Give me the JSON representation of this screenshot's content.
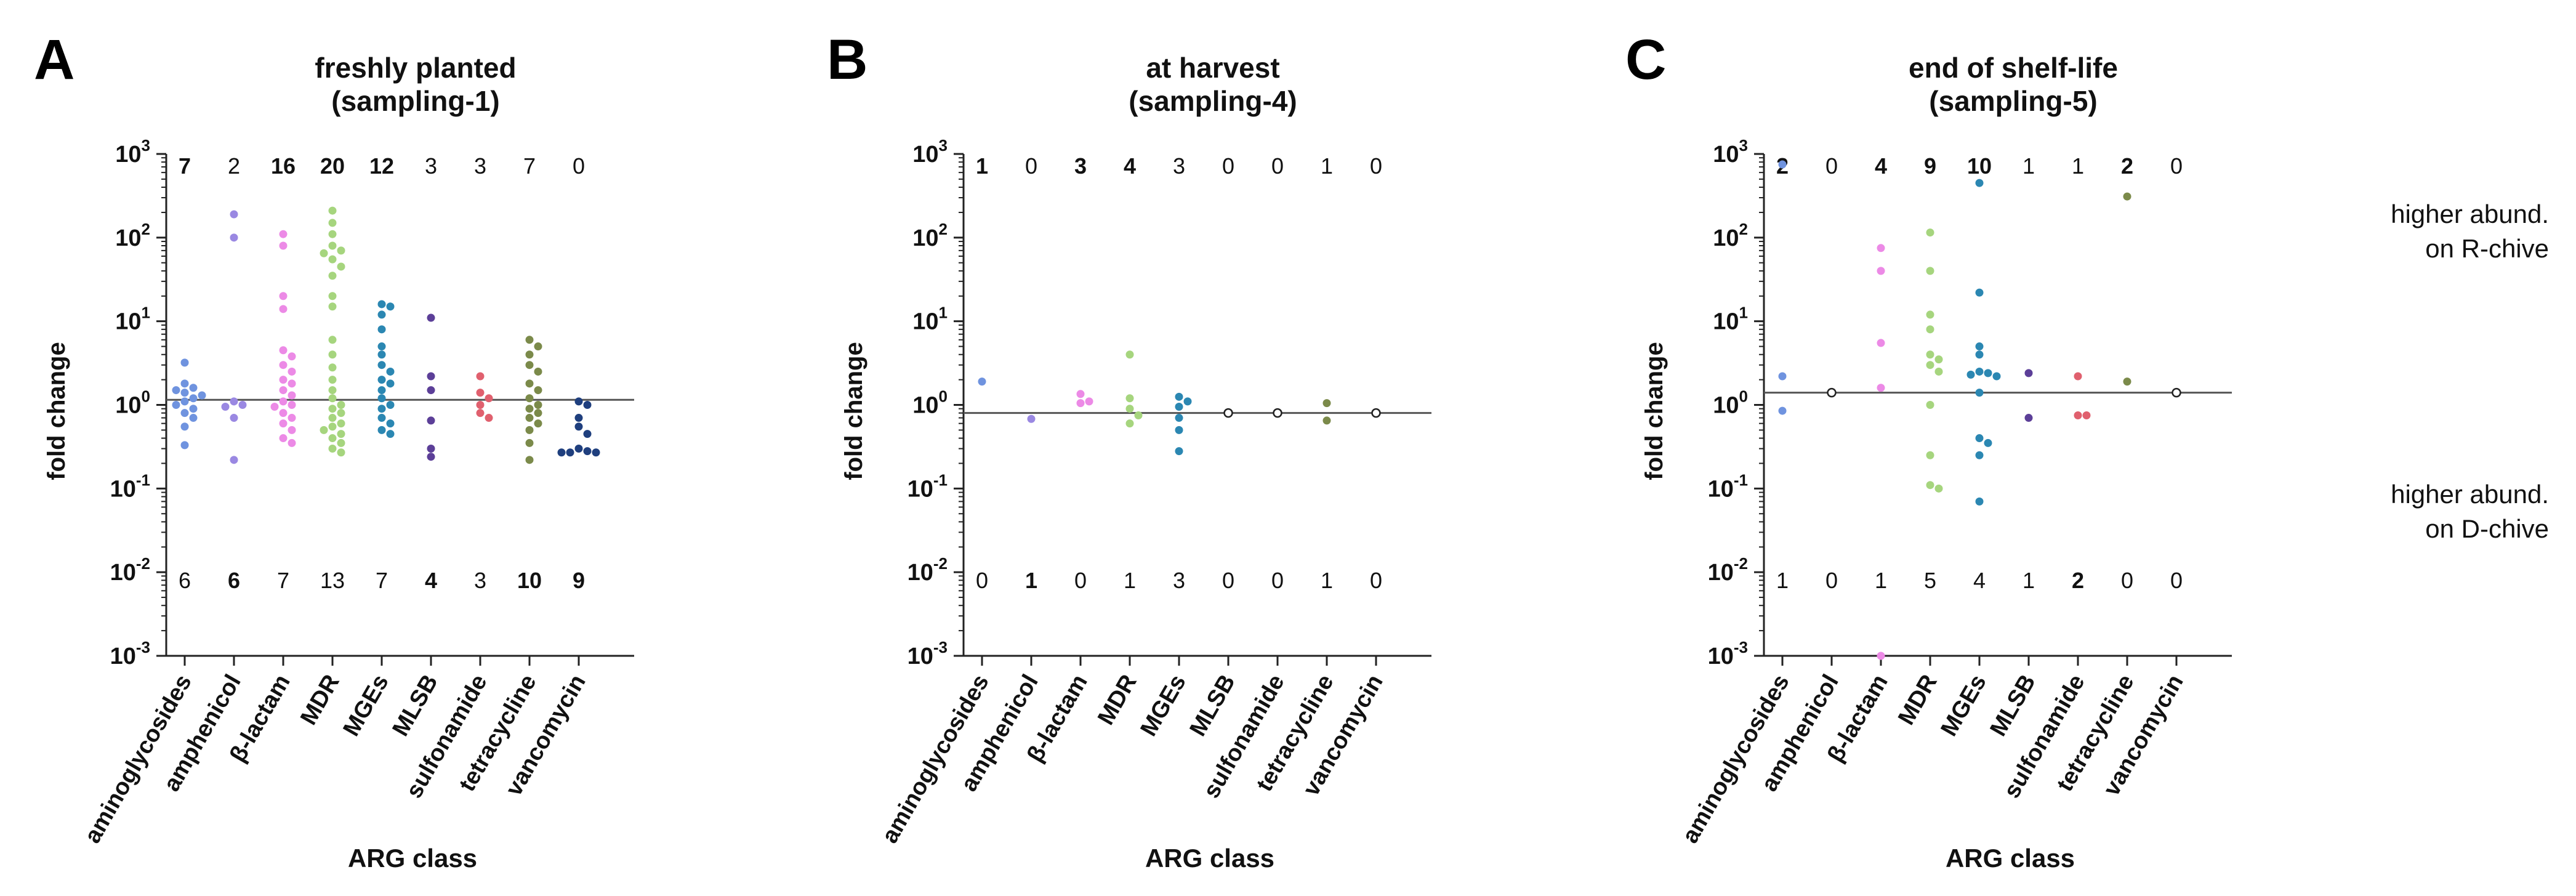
{
  "figure": {
    "categories": [
      "aminoglycosides",
      "amphenicol",
      "β-lactam",
      "MDR",
      "MGEs",
      "MLSB",
      "sulfonamide",
      "tetracycline",
      "vancomycin"
    ],
    "category_colors": [
      "#6f93df",
      "#9a88e2",
      "#ec8ae6",
      "#a6d57e",
      "#2b87b2",
      "#5c3f98",
      "#e0606e",
      "#7b8a4a",
      "#1f3f7e"
    ],
    "ylabel": "fold change",
    "xlabel": "ARG class",
    "y_ticks": [
      "10^3",
      "10^2",
      "10^1",
      "10^0",
      "10^-1",
      "10^-2",
      "10^-3"
    ],
    "notes": [
      {
        "line1": "higher abund.",
        "line2": "on R-chive"
      },
      {
        "line1": "higher abund.",
        "line2": "on D-chive"
      }
    ]
  },
  "chart_data": [
    {
      "type": "scatter",
      "panel": "A",
      "title_line1": "freshly planted",
      "title_line2": "(sampling-1)",
      "yscale": "log",
      "ylim": [
        0.001,
        1000
      ],
      "reference_line": 1.15,
      "counts_up": [
        "7",
        "2",
        "16",
        "20",
        "12",
        "3",
        "3",
        "7",
        "0"
      ],
      "counts_up_bold": [
        true,
        false,
        true,
        true,
        true,
        false,
        false,
        false,
        false
      ],
      "counts_down": [
        "6",
        "6",
        "7",
        "13",
        "7",
        "4",
        "3",
        "10",
        "9"
      ],
      "counts_down_bold": [
        false,
        true,
        false,
        false,
        false,
        true,
        false,
        true,
        true
      ],
      "series": [
        [
          3.2,
          1.8,
          1.6,
          1.5,
          1.4,
          1.3,
          1.2,
          1.1,
          1.0,
          0.9,
          0.8,
          0.7,
          0.55,
          0.33
        ],
        [
          190,
          100,
          1.1,
          1.0,
          0.95,
          0.7,
          0.22
        ],
        [
          110,
          80,
          20,
          14,
          4.5,
          3.8,
          3.0,
          2.5,
          2.0,
          1.8,
          1.5,
          1.3,
          1.1,
          1.0,
          0.95,
          0.8,
          0.7,
          0.6,
          0.5,
          0.4,
          0.35
        ],
        [
          210,
          150,
          110,
          80,
          70,
          65,
          55,
          45,
          35,
          20,
          15,
          6,
          4,
          2.8,
          2.0,
          1.5,
          1.2,
          1.0,
          0.9,
          0.8,
          0.7,
          0.6,
          0.55,
          0.5,
          0.45,
          0.4,
          0.35,
          0.3,
          0.27
        ],
        [
          16,
          15,
          12,
          8,
          5,
          4,
          3,
          2.5,
          2,
          1.8,
          1.5,
          1.2,
          1.0,
          0.9,
          0.7,
          0.6,
          0.5,
          0.45
        ],
        [
          11,
          2.2,
          1.5,
          0.65,
          0.3,
          0.24
        ],
        [
          2.2,
          1.4,
          1.2,
          1.0,
          0.8,
          0.7
        ],
        [
          6,
          5,
          4,
          3,
          2.5,
          1.8,
          1.5,
          1.2,
          1.0,
          0.9,
          0.8,
          0.7,
          0.6,
          0.5,
          0.35,
          0.22
        ],
        [
          1.1,
          1.0,
          0.7,
          0.55,
          0.45,
          0.3,
          0.28,
          0.27,
          0.27,
          0.27
        ]
      ]
    },
    {
      "type": "scatter",
      "panel": "B",
      "title_line1": "at harvest",
      "title_line2": "(sampling-4)",
      "yscale": "log",
      "ylim": [
        0.001,
        1000
      ],
      "reference_line": 0.8,
      "counts_up": [
        "1",
        "0",
        "3",
        "4",
        "3",
        "0",
        "0",
        "1",
        "0"
      ],
      "counts_up_bold": [
        true,
        false,
        true,
        true,
        false,
        false,
        false,
        false,
        false
      ],
      "counts_down": [
        "0",
        "1",
        "0",
        "1",
        "3",
        "0",
        "0",
        "1",
        "0"
      ],
      "counts_down_bold": [
        false,
        true,
        false,
        false,
        false,
        false,
        false,
        false,
        false
      ],
      "series": [
        [
          1.9
        ],
        [
          0.68
        ],
        [
          1.35,
          1.1,
          1.05
        ],
        [
          4.0,
          1.2,
          0.9,
          0.75,
          0.6
        ],
        [
          1.25,
          1.1,
          0.95,
          0.7,
          0.5,
          0.28
        ],
        [
          0.8
        ],
        [
          0.8
        ],
        [
          1.05,
          0.65
        ],
        [
          0.8
        ]
      ]
    },
    {
      "type": "scatter",
      "panel": "C",
      "title_line1": "end of shelf-life",
      "title_line2": "(sampling-5)",
      "yscale": "log",
      "ylim": [
        0.001,
        1000
      ],
      "reference_line": 1.4,
      "counts_up": [
        "2",
        "0",
        "4",
        "9",
        "10",
        "1",
        "1",
        "2",
        "0"
      ],
      "counts_up_bold": [
        true,
        false,
        true,
        true,
        true,
        false,
        false,
        true,
        false
      ],
      "counts_down": [
        "1",
        "0",
        "1",
        "5",
        "4",
        "1",
        "2",
        "0",
        "0"
      ],
      "counts_down_bold": [
        false,
        false,
        false,
        false,
        false,
        false,
        true,
        false,
        false
      ],
      "series": [
        [
          750,
          2.2,
          0.85
        ],
        [
          1.4
        ],
        [
          75,
          40,
          5.5,
          1.6,
          0.001
        ],
        [
          115,
          40,
          12,
          8,
          4,
          3.5,
          3.0,
          2.5,
          1.0,
          0.25,
          0.11,
          0.1
        ],
        [
          450,
          22,
          5,
          4,
          2.5,
          2.4,
          2.3,
          2.2,
          1.4,
          0.4,
          0.35,
          0.25,
          0.07
        ],
        [
          2.4,
          0.7
        ],
        [
          2.2,
          0.75,
          0.75
        ],
        [
          310,
          1.9
        ],
        [
          1.4
        ]
      ]
    }
  ]
}
